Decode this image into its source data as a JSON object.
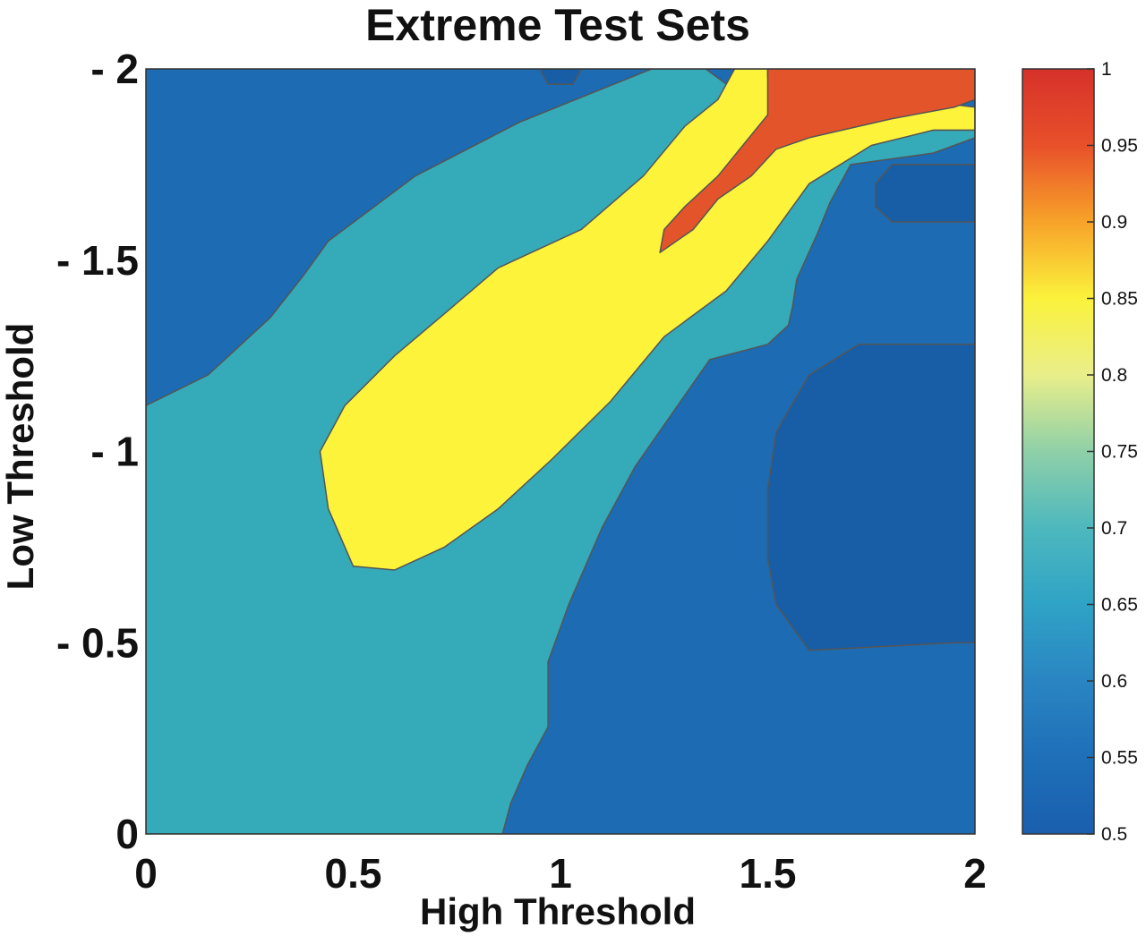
{
  "chart_data": {
    "type": "heatmap",
    "title": "Extreme Test Sets",
    "xlabel": "High Threshold",
    "ylabel": "Low Threshold",
    "xlim": [
      0,
      2
    ],
    "ylim": [
      -2,
      0
    ],
    "y_axis_inverted": true,
    "x_ticks": [
      {
        "v": 0,
        "label": "0"
      },
      {
        "v": 0.5,
        "label": "0.5"
      },
      {
        "v": 1,
        "label": "1"
      },
      {
        "v": 1.5,
        "label": "1.5"
      },
      {
        "v": 2,
        "label": "2"
      }
    ],
    "y_ticks": [
      {
        "v": -2,
        "label": "- 2"
      },
      {
        "v": -1.5,
        "label": "- 1.5"
      },
      {
        "v": -1,
        "label": "- 1"
      },
      {
        "v": -0.5,
        "label": "- 0.5"
      },
      {
        "v": 0,
        "label": "0"
      }
    ],
    "colorbar": {
      "range": [
        0.5,
        1
      ],
      "ticks": [
        "0.5",
        "0.55",
        "0.6",
        "0.65",
        "0.7",
        "0.75",
        "0.8",
        "0.85",
        "0.9",
        "0.95",
        "1"
      ],
      "colors": [
        "#1a5fae",
        "#1e6fb8",
        "#2a85c2",
        "#2fa3c6",
        "#4db8bd",
        "#8fd0a8",
        "#e9ee8a",
        "#fbf23c",
        "#f7a329",
        "#e8502a",
        "#d6312a"
      ]
    },
    "grid": false,
    "contour_levels": [
      {
        "name": "background-low",
        "value": 0.6,
        "color": "#1c6bb3",
        "polygon": [
          [
            0,
            -2
          ],
          [
            2,
            -2
          ],
          [
            2,
            0
          ],
          [
            0,
            0
          ]
        ]
      },
      {
        "name": "band-0.68",
        "value": 0.68,
        "color": "#35aab9",
        "polygon": [
          [
            0,
            -1.12
          ],
          [
            0.15,
            -1.2
          ],
          [
            0.3,
            -1.35
          ],
          [
            0.38,
            -1.46
          ],
          [
            0.44,
            -1.55
          ],
          [
            0.65,
            -1.72
          ],
          [
            0.9,
            -1.86
          ],
          [
            1.22,
            -2
          ],
          [
            1.35,
            -2
          ],
          [
            1.54,
            -1.85
          ],
          [
            1.85,
            -1.84
          ],
          [
            2,
            -1.84
          ],
          [
            2,
            -1.82
          ],
          [
            1.9,
            -1.78
          ],
          [
            1.7,
            -1.75
          ],
          [
            1.65,
            -1.65
          ],
          [
            1.62,
            -1.57
          ],
          [
            1.57,
            -1.45
          ],
          [
            1.56,
            -1.38
          ],
          [
            1.55,
            -1.33
          ],
          [
            1.5,
            -1.28
          ],
          [
            1.36,
            -1.24
          ],
          [
            1.27,
            -1.1
          ],
          [
            1.18,
            -0.96
          ],
          [
            1.1,
            -0.8
          ],
          [
            1.02,
            -0.6
          ],
          [
            0.97,
            -0.45
          ],
          [
            0.97,
            -0.28
          ],
          [
            0.92,
            -0.18
          ],
          [
            0.88,
            -0.08
          ],
          [
            0.86,
            0
          ],
          [
            0,
            0
          ]
        ]
      },
      {
        "name": "band-0.82",
        "value": 0.82,
        "color": "#fcf33a",
        "polygon": [
          [
            0.5,
            -0.7
          ],
          [
            0.6,
            -0.69
          ],
          [
            0.72,
            -0.75
          ],
          [
            0.85,
            -0.85
          ],
          [
            0.98,
            -0.98
          ],
          [
            1.12,
            -1.13
          ],
          [
            1.25,
            -1.3
          ],
          [
            1.4,
            -1.42
          ],
          [
            1.5,
            -1.55
          ],
          [
            1.6,
            -1.7
          ],
          [
            1.75,
            -1.8
          ],
          [
            1.9,
            -1.84
          ],
          [
            2,
            -1.84
          ],
          [
            2,
            -1.9
          ],
          [
            1.85,
            -1.92
          ],
          [
            1.7,
            -1.88
          ],
          [
            1.62,
            -1.84
          ],
          [
            1.56,
            -1.9
          ],
          [
            1.5,
            -1.98
          ],
          [
            1.5,
            -2
          ],
          [
            1.42,
            -2
          ],
          [
            1.38,
            -1.92
          ],
          [
            1.3,
            -1.85
          ],
          [
            1.2,
            -1.72
          ],
          [
            1.05,
            -1.58
          ],
          [
            0.85,
            -1.48
          ],
          [
            0.72,
            -1.36
          ],
          [
            0.6,
            -1.25
          ],
          [
            0.48,
            -1.12
          ],
          [
            0.42,
            -1.0
          ],
          [
            0.44,
            -0.85
          ]
        ]
      },
      {
        "name": "peak-0.92",
        "value": 0.92,
        "color": "#e4542b",
        "polygon": [
          [
            1.5,
            -2
          ],
          [
            2,
            -2
          ],
          [
            2,
            -1.92
          ],
          [
            1.95,
            -1.9
          ],
          [
            1.8,
            -1.87
          ],
          [
            1.68,
            -1.84
          ],
          [
            1.6,
            -1.82
          ],
          [
            1.52,
            -1.79
          ],
          [
            1.46,
            -1.72
          ],
          [
            1.38,
            -1.66
          ],
          [
            1.32,
            -1.58
          ],
          [
            1.24,
            -1.52
          ],
          [
            1.25,
            -1.58
          ],
          [
            1.3,
            -1.64
          ],
          [
            1.38,
            -1.72
          ],
          [
            1.44,
            -1.8
          ],
          [
            1.5,
            -1.88
          ]
        ]
      },
      {
        "name": "valley-0.52",
        "value": 0.52,
        "color": "#175ea6",
        "polygon": [
          [
            1.6,
            -0.48
          ],
          [
            1.95,
            -0.5
          ],
          [
            2,
            -0.5
          ],
          [
            2,
            -1.28
          ],
          [
            1.72,
            -1.28
          ],
          [
            1.6,
            -1.2
          ],
          [
            1.52,
            -1.05
          ],
          [
            1.5,
            -0.9
          ],
          [
            1.5,
            -0.72
          ],
          [
            1.52,
            -0.6
          ]
        ]
      },
      {
        "name": "valley-upper-right",
        "value": 0.52,
        "color": "#175ea6",
        "polygon": [
          [
            1.8,
            -1.6
          ],
          [
            2,
            -1.6
          ],
          [
            2,
            -1.75
          ],
          [
            1.8,
            -1.75
          ],
          [
            1.76,
            -1.7
          ],
          [
            1.76,
            -1.64
          ]
        ]
      },
      {
        "name": "valley-top-notch",
        "value": 0.52,
        "color": "#175ea6",
        "polygon": [
          [
            0.95,
            -2
          ],
          [
            1.05,
            -2
          ],
          [
            1.03,
            -1.96
          ],
          [
            0.97,
            -1.96
          ]
        ]
      }
    ]
  }
}
